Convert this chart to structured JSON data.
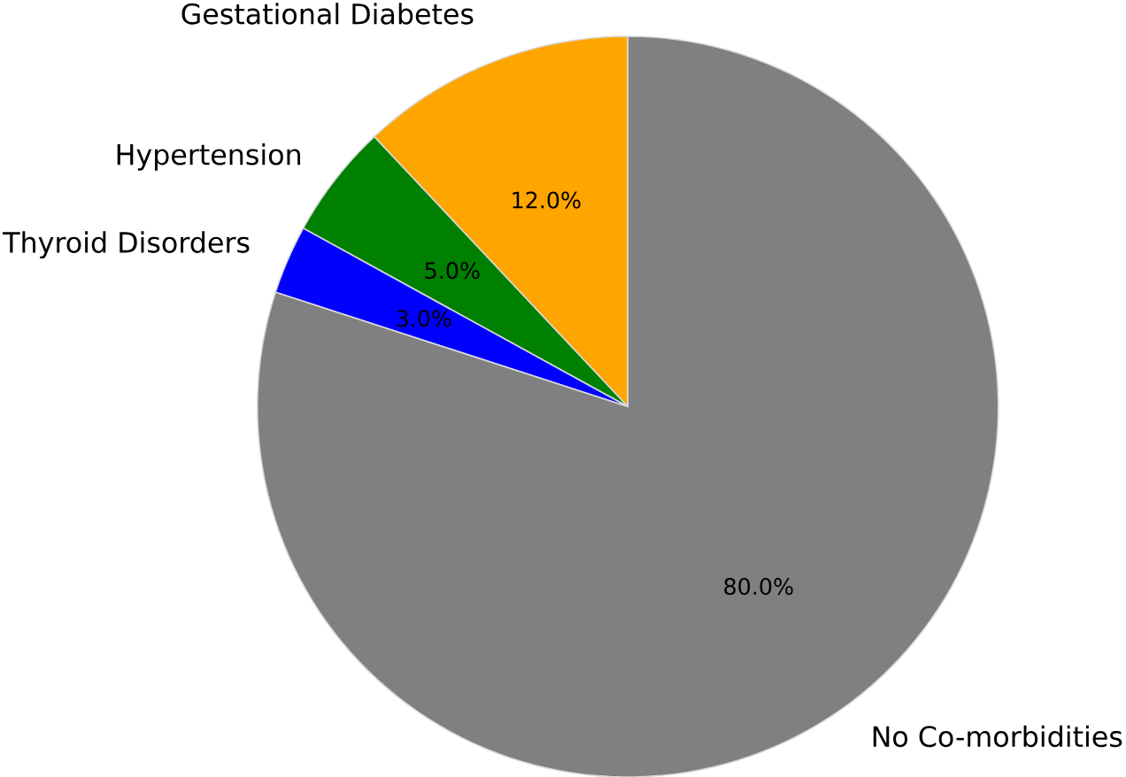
{
  "chart_data": {
    "type": "pie",
    "categories": [
      "Gestational Diabetes",
      "Hypertension",
      "Thyroid Disorders",
      "No Co-morbidities"
    ],
    "values": [
      12,
      5,
      3,
      80
    ],
    "colors": [
      "#ffa500",
      "#008000",
      "#0000ff",
      "#808080"
    ],
    "value_labels": [
      "12.0%",
      "5.0%",
      "3.0%",
      "80.0%"
    ]
  }
}
